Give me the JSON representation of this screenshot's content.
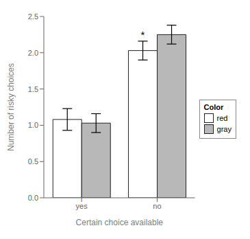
{
  "chart_data": {
    "type": "bar",
    "categories": [
      "yes",
      "no"
    ],
    "series": [
      {
        "name": "red",
        "color": "#ffffff",
        "values": [
          1.08,
          2.03
        ],
        "error_lower": [
          0.15,
          0.13
        ],
        "error_upper": [
          0.15,
          0.13
        ]
      },
      {
        "name": "gray",
        "color": "#b8b8b8",
        "values": [
          1.03,
          2.25
        ],
        "error_lower": [
          0.13,
          0.13
        ],
        "error_upper": [
          0.13,
          0.13
        ]
      }
    ],
    "xlabel": "Certain choice available",
    "ylabel": "Number of risky choices",
    "ylim": [
      0.0,
      2.5
    ],
    "yticks": [
      {
        "value": 0.0,
        "label": "0.0"
      },
      {
        "value": 0.5,
        "label": "0.5"
      },
      {
        "value": 1.0,
        "label": "1.0"
      },
      {
        "value": 1.5,
        "label": "1.5"
      },
      {
        "value": 2.0,
        "label": "2.0"
      },
      {
        "value": 2.5,
        "label": "2.5"
      }
    ],
    "legend_title": "Color",
    "legend": "right",
    "grid": false,
    "annotations": [
      {
        "text": "*",
        "category": "no",
        "series": "red"
      }
    ]
  }
}
